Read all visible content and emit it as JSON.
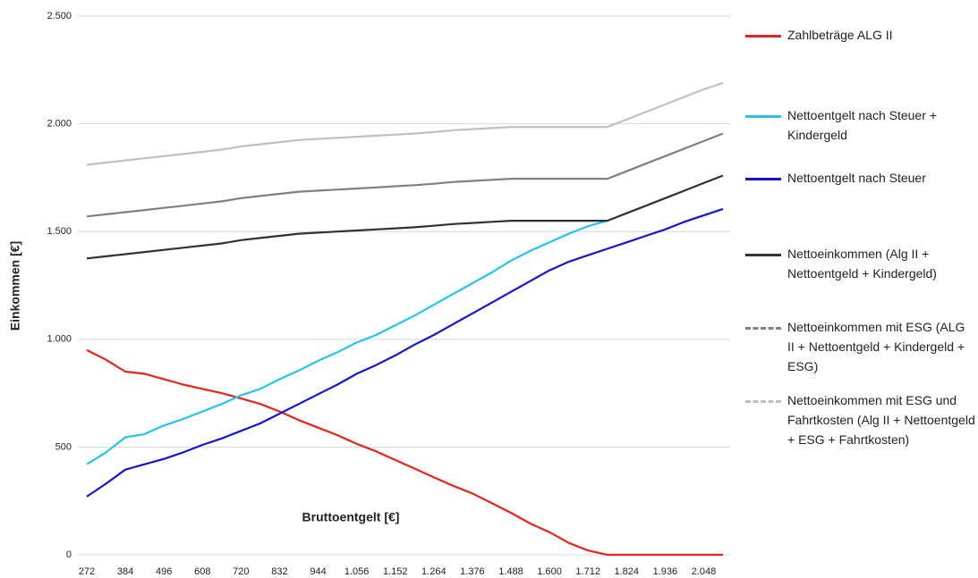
{
  "chart_data": {
    "type": "line",
    "x_label": "Bruttoentgelt [€]",
    "y_label": "Einkommen [€]",
    "categories": [
      "272",
      null,
      "384",
      null,
      "496",
      null,
      "608",
      null,
      "720",
      null,
      "832",
      null,
      "944",
      null,
      "1.056",
      null,
      "1.152",
      null,
      "1.264",
      null,
      "1.376",
      null,
      "1.488",
      null,
      "1.600",
      null,
      "1.712",
      null,
      "1.824",
      null,
      "1.936",
      null,
      "2.048",
      null
    ],
    "ylim": [
      0,
      2500
    ],
    "yticks": [
      0,
      500,
      {
        "value": 1000,
        "label": "1.000"
      },
      {
        "value": 1500,
        "label": "1.500"
      },
      {
        "value": 2000,
        "label": "2.000"
      },
      {
        "value": 2500,
        "label": "2.500"
      }
    ],
    "grid": true,
    "series": [
      {
        "name": "Zahlbeträge ALG II",
        "color": "#e8231c",
        "dash": false,
        "values": [
          950,
          905,
          850,
          840,
          815,
          790,
          770,
          750,
          725,
          700,
          665,
          625,
          590,
          555,
          515,
          480,
          440,
          400,
          360,
          320,
          285,
          240,
          195,
          145,
          105,
          55,
          20,
          0,
          0,
          0,
          0,
          0,
          0,
          0
        ]
      },
      {
        "name": "Nettoentgelt nach Steuer + Kindergeld",
        "color": "#22c4ee",
        "dash": false,
        "values": [
          420,
          475,
          545,
          560,
          600,
          630,
          665,
          700,
          740,
          770,
          815,
          855,
          900,
          940,
          985,
          1020,
          1065,
          1110,
          1160,
          1210,
          1260,
          1310,
          1365,
          1410,
          1450,
          1490,
          1525,
          1550,
          null,
          null,
          null,
          null,
          null,
          null
        ]
      },
      {
        "name": "Nettoentgelt nach Steuer",
        "color": "#1414d2",
        "dash": false,
        "values": [
          270,
          330,
          395,
          420,
          445,
          475,
          510,
          540,
          575,
          610,
          655,
          700,
          745,
          790,
          840,
          880,
          925,
          975,
          1020,
          1070,
          1120,
          1170,
          1220,
          1270,
          1320,
          1360,
          1390,
          1420,
          1450,
          1480,
          1510,
          1545,
          1575,
          1605
        ]
      },
      {
        "name": "Nettoeinkommen (Alg II + Nettoentgeld + Kindergeld)",
        "color": "#2f3234",
        "dash": false,
        "values": [
          1375,
          1385,
          1395,
          1405,
          1415,
          1425,
          1435,
          1445,
          1460,
          1470,
          1480,
          1490,
          1495,
          1500,
          1505,
          1510,
          1515,
          1520,
          1527,
          1535,
          1540,
          1545,
          1550,
          1550,
          1550,
          1550,
          1550,
          1550,
          1585,
          1620,
          1655,
          1690,
          1725,
          1760
        ]
      },
      {
        "name": "Nettoeinkommen mit ESG (ALG II + Nettoentgeld + Kindergeld + ESG)",
        "color": "#808080",
        "dash": true,
        "values": [
          1570,
          1580,
          1590,
          1600,
          1610,
          1620,
          1630,
          1640,
          1655,
          1665,
          1675,
          1685,
          1690,
          1695,
          1700,
          1705,
          1710,
          1715,
          1722,
          1730,
          1735,
          1740,
          1745,
          1745,
          1745,
          1745,
          1745,
          1745,
          1780,
          1815,
          1850,
          1885,
          1920,
          1955
        ]
      },
      {
        "name": "Nettoeinkommen mit ESG und Fahrtkosten (Alg II + Nettoentgeld + ESG + Fahrtkosten)",
        "color": "#c0c0c0",
        "dash": true,
        "values": [
          1810,
          1820,
          1830,
          1840,
          1850,
          1860,
          1870,
          1880,
          1895,
          1905,
          1915,
          1925,
          1930,
          1935,
          1940,
          1945,
          1950,
          1955,
          1962,
          1970,
          1975,
          1980,
          1985,
          1985,
          1985,
          1985,
          1985,
          1985,
          2020,
          2055,
          2090,
          2125,
          2160,
          2190
        ]
      }
    ]
  }
}
